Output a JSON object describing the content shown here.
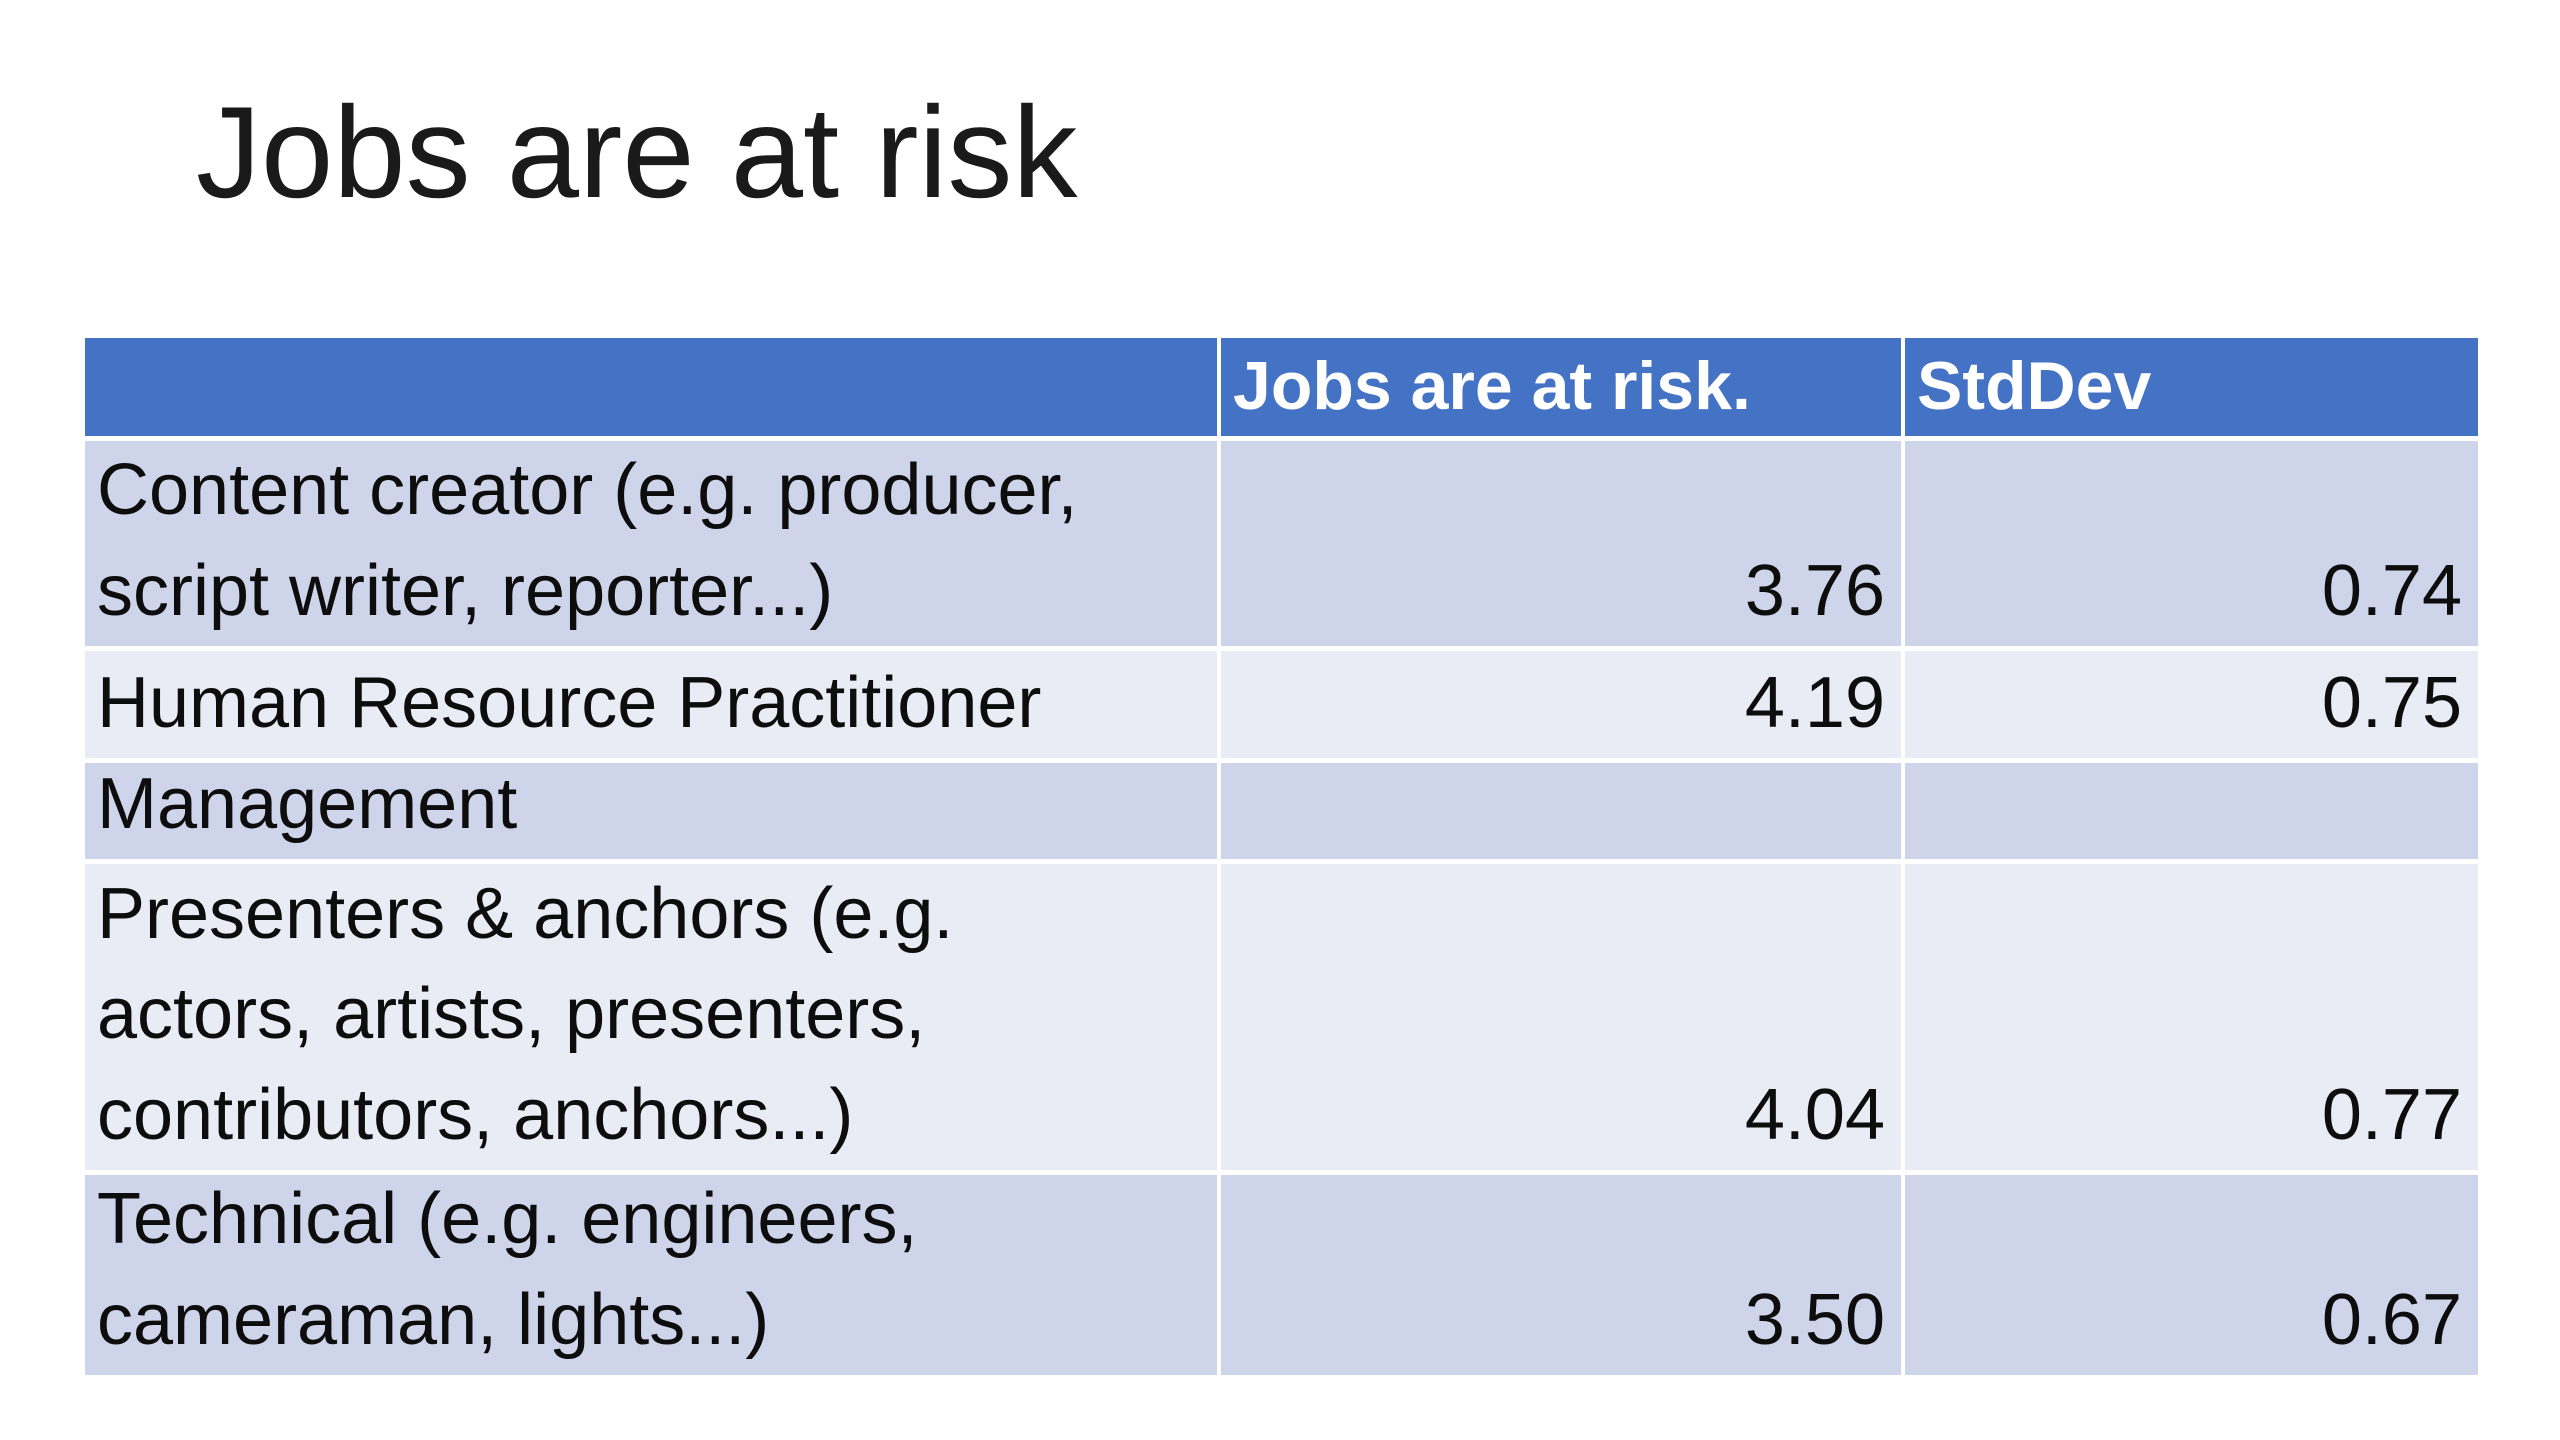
{
  "slide": {
    "title": "Jobs are at risk"
  },
  "table": {
    "columns": [
      {
        "label": ""
      },
      {
        "label": "Jobs are at risk."
      },
      {
        "label": "StdDev"
      }
    ],
    "rows": [
      {
        "label": "Content creator (e.g. producer, script writer, reporter...)",
        "label_lines": [
          "Content creator (e.g. producer,",
          "script writer, reporter...)"
        ],
        "risk": "3.76",
        "stddev": "0.74"
      },
      {
        "label": "Human Resource Practitioner",
        "label_lines": [
          "Human Resource Practitioner"
        ],
        "risk": "4.19",
        "stddev": "0.75"
      },
      {
        "label": "Management",
        "label_lines": [
          "Management"
        ],
        "risk": "",
        "stddev": ""
      },
      {
        "label": "Presenters & anchors (e.g. actors, artists, presenters, contributors, anchors...)",
        "label_lines": [
          "Presenters & anchors (e.g.",
          "actors, artists, presenters,",
          "contributors, anchors...)"
        ],
        "risk": "4.04",
        "stddev": "0.77"
      },
      {
        "label": "Technical (e.g. engineers, cameraman, lights...)",
        "label_lines": [
          "Technical (e.g. engineers,",
          "cameraman, lights...)"
        ],
        "risk": "3.50",
        "stddev": "0.67"
      }
    ]
  },
  "colors": {
    "header_bg": "#4472C4",
    "header_text": "#FFFFFF",
    "band_dark": "#CED4E9",
    "band_light": "#E9EBF5",
    "text": "#0D0D0D",
    "background": "#FFFFFF"
  }
}
